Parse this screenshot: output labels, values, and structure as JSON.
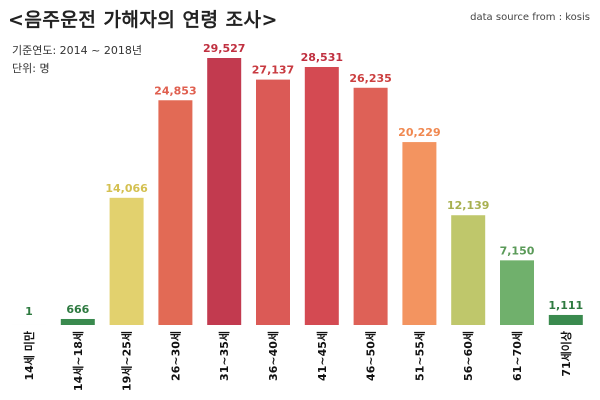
{
  "header": {
    "title": "<음주운전 가해자의 연령 조사>",
    "source": "data source from : kosis",
    "period": "기준연도:  2014 ~ 2018년",
    "unit": "단위:   명"
  },
  "chart_data": {
    "type": "bar",
    "title": "<음주운전 가해자의 연령 조사>",
    "xlabel": "",
    "ylabel": "",
    "categories": [
      "14세 미만",
      "14세~18세",
      "19세~25세",
      "26~30세",
      "31~35세",
      "36~40세",
      "41~45세",
      "46~50세",
      "51~55세",
      "56~60세",
      "61~70세",
      "71세이상"
    ],
    "values": [
      1,
      666,
      14066,
      24853,
      29527,
      27137,
      28531,
      26235,
      20229,
      12139,
      7150,
      1111
    ],
    "value_labels": [
      "1",
      "666",
      "14,066",
      "24,853",
      "29,527",
      "27,137",
      "28,531",
      "26,235",
      "20,229",
      "12,139",
      "7,150",
      "1,111"
    ],
    "colors": [
      "#3a8a4e",
      "#3a8a4e",
      "#e2d16e",
      "#e26a55",
      "#c23a4f",
      "#db5a56",
      "#d44a52",
      "#de6157",
      "#f39460",
      "#bfc76b",
      "#70b06c",
      "#3a8a4e"
    ],
    "label_colors": [
      "#2e7a40",
      "#2e7a40",
      "#d4c050",
      "#e06050",
      "#c03040",
      "#c83a40",
      "#c03040",
      "#cc4040",
      "#f08850",
      "#a8b050",
      "#5a9a58",
      "#2e7a40"
    ],
    "ylim": [
      0,
      29527
    ],
    "grid": false,
    "legend": "none"
  }
}
